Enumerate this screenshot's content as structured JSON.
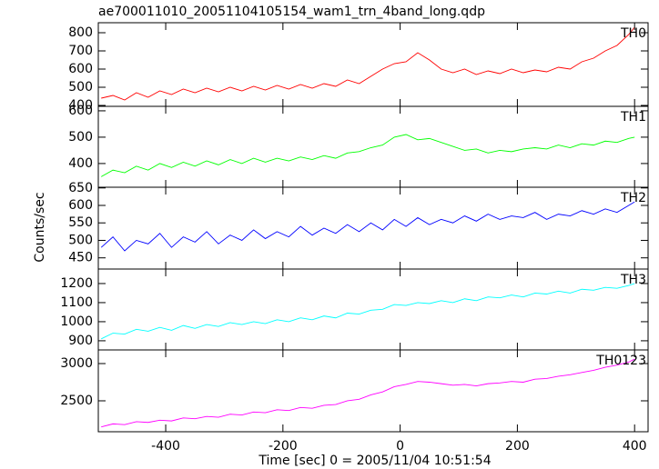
{
  "chart_data": [
    {
      "type": "line",
      "title": "ae700011010_20051104105154_wam1_trn_4band_long.qdp",
      "y_label": "Counts/sec",
      "label": "TH0",
      "color": "#ff0000",
      "x": [
        -510,
        -490,
        -470,
        -450,
        -430,
        -410,
        -390,
        -370,
        -350,
        -330,
        -310,
        -290,
        -270,
        -250,
        -230,
        -210,
        -190,
        -170,
        -150,
        -130,
        -110,
        -90,
        -70,
        -50,
        -30,
        -10,
        10,
        30,
        50,
        70,
        90,
        110,
        130,
        150,
        170,
        190,
        210,
        230,
        250,
        270,
        290,
        310,
        330,
        350,
        370,
        390,
        400
      ],
      "values": [
        440,
        455,
        430,
        470,
        445,
        480,
        460,
        490,
        470,
        495,
        475,
        500,
        480,
        505,
        485,
        510,
        490,
        515,
        495,
        520,
        505,
        540,
        520,
        560,
        600,
        630,
        640,
        690,
        650,
        600,
        580,
        600,
        570,
        590,
        575,
        600,
        580,
        595,
        585,
        610,
        600,
        640,
        660,
        700,
        730,
        790,
        830
      ],
      "xlim": [
        -515,
        423
      ],
      "xticks": [
        -400,
        -200,
        0,
        200,
        400
      ],
      "ylim": [
        395,
        855
      ],
      "yticks": [
        400,
        500,
        600,
        700,
        800
      ]
    },
    {
      "type": "line",
      "label": "TH1",
      "color": "#00ff00",
      "x": [
        -510,
        -490,
        -470,
        -450,
        -430,
        -410,
        -390,
        -370,
        -350,
        -330,
        -310,
        -290,
        -270,
        -250,
        -230,
        -210,
        -190,
        -170,
        -150,
        -130,
        -110,
        -90,
        -70,
        -50,
        -30,
        -10,
        10,
        30,
        50,
        70,
        90,
        110,
        130,
        150,
        170,
        190,
        210,
        230,
        250,
        270,
        290,
        310,
        330,
        350,
        370,
        390,
        400
      ],
      "values": [
        350,
        375,
        365,
        390,
        375,
        400,
        385,
        405,
        390,
        410,
        395,
        415,
        400,
        420,
        405,
        420,
        410,
        425,
        415,
        430,
        420,
        440,
        445,
        460,
        470,
        500,
        510,
        490,
        495,
        480,
        465,
        450,
        455,
        440,
        450,
        445,
        455,
        460,
        455,
        470,
        460,
        475,
        470,
        485,
        480,
        495,
        500
      ],
      "xlim": [
        -515,
        423
      ],
      "xticks": [
        -400,
        -200,
        0,
        200,
        400
      ],
      "ylim": [
        310,
        617
      ],
      "yticks": [
        400,
        500,
        600
      ]
    },
    {
      "type": "line",
      "label": "TH2",
      "color": "#0000ff",
      "x": [
        -510,
        -490,
        -470,
        -450,
        -430,
        -410,
        -390,
        -370,
        -350,
        -330,
        -310,
        -290,
        -270,
        -250,
        -230,
        -210,
        -190,
        -170,
        -150,
        -130,
        -110,
        -90,
        -70,
        -50,
        -30,
        -10,
        10,
        30,
        50,
        70,
        90,
        110,
        130,
        150,
        170,
        190,
        210,
        230,
        250,
        270,
        290,
        310,
        330,
        350,
        370,
        390,
        400
      ],
      "values": [
        480,
        510,
        470,
        500,
        490,
        520,
        480,
        510,
        495,
        525,
        490,
        515,
        500,
        530,
        505,
        525,
        510,
        540,
        515,
        535,
        520,
        545,
        525,
        550,
        530,
        560,
        540,
        565,
        545,
        560,
        550,
        570,
        555,
        575,
        560,
        570,
        565,
        580,
        560,
        575,
        570,
        585,
        575,
        590,
        580,
        600,
        610
      ],
      "xlim": [
        -515,
        423
      ],
      "xticks": [
        -400,
        -200,
        0,
        200,
        400
      ],
      "ylim": [
        418,
        652
      ],
      "yticks": [
        450,
        500,
        550,
        600,
        650
      ]
    },
    {
      "type": "line",
      "label": "TH3",
      "color": "#00ffff",
      "x": [
        -510,
        -490,
        -470,
        -450,
        -430,
        -410,
        -390,
        -370,
        -350,
        -330,
        -310,
        -290,
        -270,
        -250,
        -230,
        -210,
        -190,
        -170,
        -150,
        -130,
        -110,
        -90,
        -70,
        -50,
        -30,
        -10,
        10,
        30,
        50,
        70,
        90,
        110,
        130,
        150,
        170,
        190,
        210,
        230,
        250,
        270,
        290,
        310,
        330,
        350,
        370,
        390,
        400
      ],
      "values": [
        910,
        940,
        935,
        960,
        950,
        970,
        955,
        980,
        965,
        985,
        975,
        995,
        985,
        1000,
        990,
        1010,
        1000,
        1020,
        1010,
        1030,
        1020,
        1045,
        1040,
        1060,
        1065,
        1090,
        1085,
        1100,
        1095,
        1110,
        1100,
        1120,
        1110,
        1130,
        1125,
        1140,
        1130,
        1150,
        1145,
        1160,
        1150,
        1170,
        1165,
        1180,
        1175,
        1190,
        1200
      ],
      "xlim": [
        -515,
        423
      ],
      "xticks": [
        -400,
        -200,
        0,
        200,
        400
      ],
      "ylim": [
        852,
        1276
      ],
      "yticks": [
        900,
        1000,
        1100,
        1200
      ]
    },
    {
      "type": "line",
      "label": "TH0123",
      "color": "#ff00ff",
      "x_label": "Time [sec] 0 = 2005/11/04 10:51:54",
      "x": [
        -510,
        -490,
        -470,
        -450,
        -430,
        -410,
        -390,
        -370,
        -350,
        -330,
        -310,
        -290,
        -270,
        -250,
        -230,
        -210,
        -190,
        -170,
        -150,
        -130,
        -110,
        -90,
        -70,
        -50,
        -30,
        -10,
        10,
        30,
        50,
        70,
        90,
        110,
        130,
        150,
        170,
        190,
        210,
        230,
        250,
        270,
        290,
        310,
        330,
        350,
        370,
        390,
        400
      ],
      "values": [
        2150,
        2190,
        2180,
        2220,
        2210,
        2240,
        2230,
        2270,
        2260,
        2290,
        2280,
        2320,
        2310,
        2350,
        2340,
        2380,
        2370,
        2410,
        2400,
        2440,
        2450,
        2500,
        2520,
        2580,
        2620,
        2690,
        2720,
        2760,
        2750,
        2730,
        2710,
        2720,
        2700,
        2730,
        2740,
        2760,
        2750,
        2790,
        2800,
        2830,
        2850,
        2880,
        2910,
        2950,
        2980,
        3020,
        3060
      ],
      "xlim": [
        -515,
        423
      ],
      "xticks": [
        -400,
        -200,
        0,
        200,
        400
      ],
      "ylim": [
        2085,
        3183
      ],
      "yticks": [
        2500,
        3000
      ]
    }
  ]
}
